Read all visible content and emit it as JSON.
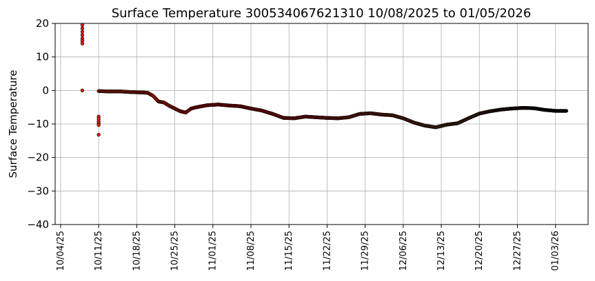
{
  "chart_data": {
    "type": "scatter",
    "title": "Surface Temperature 300534067621310  10/08/2025 to 01/05/2026",
    "xlabel": "",
    "ylabel": "Surface Temperature",
    "xlim": [
      "2025-10-03",
      "2026-01-09"
    ],
    "ylim": [
      -40,
      20
    ],
    "yticks": [
      -40,
      -30,
      -20,
      -10,
      0,
      10,
      20
    ],
    "xticks": [
      "10/04/25",
      "10/11/25",
      "10/18/25",
      "10/25/25",
      "11/01/25",
      "11/08/25",
      "11/15/25",
      "11/22/25",
      "11/29/25",
      "12/06/25",
      "12/13/25",
      "12/20/25",
      "12/27/25",
      "01/03/26"
    ],
    "xtick_dates": [
      "2025-10-04",
      "2025-10-11",
      "2025-10-18",
      "2025-10-25",
      "2025-11-01",
      "2025-11-08",
      "2025-11-15",
      "2025-11-22",
      "2025-11-29",
      "2025-12-06",
      "2025-12-13",
      "2025-12-20",
      "2025-12-27",
      "2026-01-03"
    ],
    "grid": true,
    "marker_edge_color": "#000000",
    "color_gradient": [
      "#ff3c00",
      "#ee0a00",
      "#c42c1a",
      "#7a3e22",
      "#000000"
    ],
    "outliers": [
      {
        "x": "2025-10-08",
        "y": 19.5
      },
      {
        "x": "2025-10-08",
        "y": 18.5
      },
      {
        "x": "2025-10-08",
        "y": 17.5
      },
      {
        "x": "2025-10-08",
        "y": 16.5
      },
      {
        "x": "2025-10-08",
        "y": 15.5
      },
      {
        "x": "2025-10-08",
        "y": 14.8
      },
      {
        "x": "2025-10-08",
        "y": 14.0
      },
      {
        "x": "2025-10-08",
        "y": 0.0
      },
      {
        "x": "2025-10-11",
        "y": -7.8
      },
      {
        "x": "2025-10-11",
        "y": -8.5
      },
      {
        "x": "2025-10-11",
        "y": -9.2
      },
      {
        "x": "2025-10-11",
        "y": -9.8
      },
      {
        "x": "2025-10-11",
        "y": -10.3
      },
      {
        "x": "2025-10-11",
        "y": -13.2
      }
    ],
    "series": [
      {
        "x": [
          "2025-10-11",
          "2025-10-13",
          "2025-10-15",
          "2025-10-17",
          "2025-10-19",
          "2025-10-20",
          "2025-10-21",
          "2025-10-22",
          "2025-10-23",
          "2025-10-24",
          "2025-10-25",
          "2025-10-26",
          "2025-10-27",
          "2025-10-28",
          "2025-10-29",
          "2025-10-31",
          "2025-11-02",
          "2025-11-04",
          "2025-11-06",
          "2025-11-08",
          "2025-11-10",
          "2025-11-12",
          "2025-11-14",
          "2025-11-16",
          "2025-11-18",
          "2025-11-20",
          "2025-11-22",
          "2025-11-24",
          "2025-11-26",
          "2025-11-28",
          "2025-11-30",
          "2025-12-02",
          "2025-12-04",
          "2025-12-06",
          "2025-12-08",
          "2025-12-10",
          "2025-12-12",
          "2025-12-14",
          "2025-12-16",
          "2025-12-18",
          "2025-12-20",
          "2025-12-22",
          "2025-12-24",
          "2025-12-26",
          "2025-12-28",
          "2025-12-30",
          "2026-01-01",
          "2026-01-03",
          "2026-01-05"
        ],
        "y": [
          -0.2,
          -0.3,
          -0.3,
          -0.5,
          -0.6,
          -0.7,
          -1.6,
          -3.3,
          -3.6,
          -4.6,
          -5.4,
          -6.2,
          -6.6,
          -5.4,
          -5.0,
          -4.4,
          -4.2,
          -4.5,
          -4.7,
          -5.4,
          -6.0,
          -7.0,
          -8.2,
          -8.3,
          -7.8,
          -8.0,
          -8.2,
          -8.3,
          -8.0,
          -7.0,
          -6.8,
          -7.2,
          -7.4,
          -8.3,
          -9.6,
          -10.5,
          -11.0,
          -10.2,
          -9.8,
          -8.3,
          -6.9,
          -6.2,
          -5.7,
          -5.4,
          -5.2,
          -5.3,
          -5.8,
          -6.1,
          -6.1
        ]
      }
    ]
  }
}
